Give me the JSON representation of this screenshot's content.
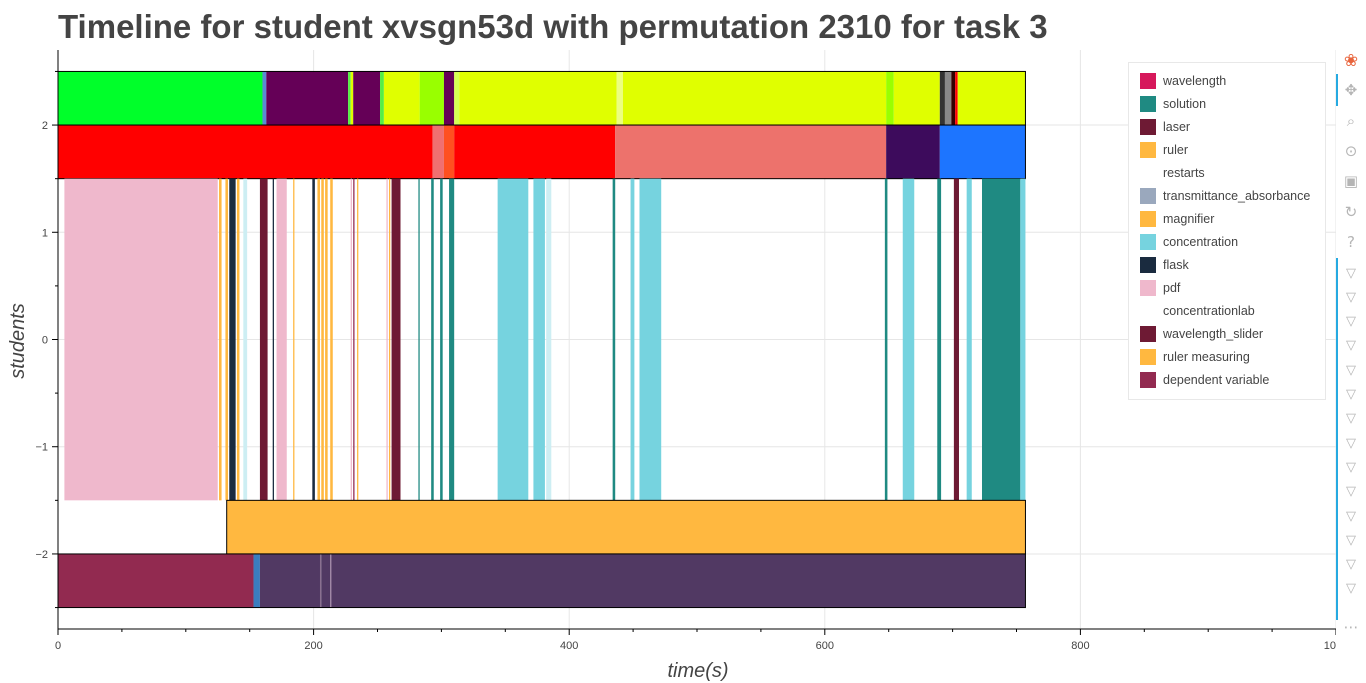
{
  "chart_data": {
    "type": "timeline",
    "title": "Timeline for student xvsgn53d with permutation 2310 for task 3",
    "xlabel": "time(s)",
    "ylabel": "students",
    "xlim": [
      0,
      1000
    ],
    "ylim": [
      -2.7,
      2.7
    ],
    "x_ticks": [
      "0",
      "200",
      "400",
      "600",
      "800",
      "1000"
    ],
    "y_ticks": [
      "2",
      "1",
      "0",
      "−1",
      "−2"
    ],
    "y_tick_values": [
      2,
      1,
      0,
      -1,
      -2
    ],
    "x_tick_values": [
      0,
      200,
      400,
      600,
      800,
      1000
    ],
    "grid": true,
    "legend_position": "top-right",
    "legend": [
      {
        "name": "wavelength",
        "color": "#d6185b"
      },
      {
        "name": "solution",
        "color": "#1f8a82"
      },
      {
        "name": "laser",
        "color": "#6e1a34"
      },
      {
        "name": "ruler",
        "color": "#ffb840"
      },
      {
        "name": "restarts",
        "color": "#ffffff"
      },
      {
        "name": "transmittance_absorbance",
        "color": "#9aa8bd"
      },
      {
        "name": "magnifier",
        "color": "#ffb840"
      },
      {
        "name": "concentration",
        "color": "#76d3df"
      },
      {
        "name": "flask",
        "color": "#1a2b3f"
      },
      {
        "name": "pdf",
        "color": "#efb8cc"
      },
      {
        "name": "concentrationlab",
        "color": "#ffffff"
      },
      {
        "name": "wavelength_slider",
        "color": "#6e1a34"
      },
      {
        "name": "ruler measuring",
        "color": "#ffb840"
      },
      {
        "name": "dependent variable",
        "color": "#922a50"
      }
    ],
    "rows": [
      {
        "y0": 2.0,
        "y1": 2.5,
        "segments": [
          {
            "x0": 0,
            "x1": 160,
            "color": "#00ff2a"
          },
          {
            "x0": 160,
            "x1": 163,
            "color": "#5b8bd4"
          },
          {
            "x0": 163,
            "x1": 227,
            "color": "#650057"
          },
          {
            "x0": 227,
            "x1": 229,
            "color": "#55ee44"
          },
          {
            "x0": 229,
            "x1": 231,
            "color": "#e0ff00"
          },
          {
            "x0": 231,
            "x1": 252,
            "color": "#650057"
          },
          {
            "x0": 252,
            "x1": 255,
            "color": "#55ee44"
          },
          {
            "x0": 255,
            "x1": 283,
            "color": "#e0ff00"
          },
          {
            "x0": 283,
            "x1": 302,
            "color": "#99ff00"
          },
          {
            "x0": 302,
            "x1": 310,
            "color": "#650057"
          },
          {
            "x0": 310,
            "x1": 314,
            "color": "#d7ff55"
          },
          {
            "x0": 314,
            "x1": 437,
            "color": "#e0ff00"
          },
          {
            "x0": 437,
            "x1": 442,
            "color": "#ecff80"
          },
          {
            "x0": 442,
            "x1": 648,
            "color": "#e0ff00"
          },
          {
            "x0": 648,
            "x1": 654,
            "color": "#99ff00"
          },
          {
            "x0": 654,
            "x1": 690,
            "color": "#e0ff00"
          },
          {
            "x0": 690,
            "x1": 694,
            "color": "#333333"
          },
          {
            "x0": 694,
            "x1": 699,
            "color": "#888888"
          },
          {
            "x0": 699,
            "x1": 702,
            "color": "#330000"
          },
          {
            "x0": 702,
            "x1": 704,
            "color": "#ff0000"
          },
          {
            "x0": 704,
            "x1": 757,
            "color": "#e0ff00"
          }
        ]
      },
      {
        "y0": 1.5,
        "y1": 2.0,
        "segments": [
          {
            "x0": 0,
            "x1": 293,
            "color": "#ff0000"
          },
          {
            "x0": 293,
            "x1": 302,
            "color": "#f07070"
          },
          {
            "x0": 302,
            "x1": 310,
            "color": "#ff5020"
          },
          {
            "x0": 310,
            "x1": 436,
            "color": "#ff0000"
          },
          {
            "x0": 436,
            "x1": 648,
            "color": "#ed726c"
          },
          {
            "x0": 648,
            "x1": 690,
            "color": "#3d0b5c"
          },
          {
            "x0": 690,
            "x1": 757,
            "color": "#1d75ff"
          }
        ]
      },
      {
        "y0": -1.5,
        "y1": 1.5,
        "segments": [
          {
            "x0": 5,
            "x1": 125,
            "color": "#efb8cc"
          },
          {
            "x0": 126,
            "x1": 128,
            "color": "#ffb840"
          },
          {
            "x0": 131,
            "x1": 133,
            "color": "#ffb840"
          },
          {
            "x0": 134,
            "x1": 139,
            "color": "#1a2b3f"
          },
          {
            "x0": 140,
            "x1": 142,
            "color": "#ffb840"
          },
          {
            "x0": 145,
            "x1": 148,
            "color": "#cdeef3"
          },
          {
            "x0": 158,
            "x1": 164,
            "color": "#6e1a34"
          },
          {
            "x0": 168,
            "x1": 169,
            "color": "#1a2b3f"
          },
          {
            "x0": 171,
            "x1": 179,
            "color": "#efb8cc"
          },
          {
            "x0": 184,
            "x1": 185,
            "color": "#ffb840"
          },
          {
            "x0": 199,
            "x1": 201,
            "color": "#1a2b3f"
          },
          {
            "x0": 203,
            "x1": 205,
            "color": "#ffb840"
          },
          {
            "x0": 206,
            "x1": 208,
            "color": "#ffb840"
          },
          {
            "x0": 209,
            "x1": 211,
            "color": "#ffb840"
          },
          {
            "x0": 213,
            "x1": 215,
            "color": "#ffb840"
          },
          {
            "x0": 229,
            "x1": 230,
            "color": "#efb8cc"
          },
          {
            "x0": 231,
            "x1": 232,
            "color": "#922a50"
          },
          {
            "x0": 234,
            "x1": 235,
            "color": "#ffb840"
          },
          {
            "x0": 257,
            "x1": 258,
            "color": "#efb8cc"
          },
          {
            "x0": 259,
            "x1": 260,
            "color": "#ffb840"
          },
          {
            "x0": 261,
            "x1": 268,
            "color": "#6e1a34"
          },
          {
            "x0": 282,
            "x1": 283,
            "color": "#1f8a82"
          },
          {
            "x0": 292,
            "x1": 294,
            "color": "#1f8a82"
          },
          {
            "x0": 299,
            "x1": 301,
            "color": "#1f8a82"
          },
          {
            "x0": 306,
            "x1": 310,
            "color": "#1f8a82"
          },
          {
            "x0": 344,
            "x1": 368,
            "color": "#76d3df"
          },
          {
            "x0": 372,
            "x1": 381,
            "color": "#76d3df"
          },
          {
            "x0": 382,
            "x1": 386,
            "color": "#cdeef3"
          },
          {
            "x0": 434,
            "x1": 436,
            "color": "#1f8a82"
          },
          {
            "x0": 448,
            "x1": 451,
            "color": "#76d3df"
          },
          {
            "x0": 455,
            "x1": 472,
            "color": "#76d3df"
          },
          {
            "x0": 647,
            "x1": 649,
            "color": "#1f8a82"
          },
          {
            "x0": 661,
            "x1": 670,
            "color": "#76d3df"
          },
          {
            "x0": 688,
            "x1": 691,
            "color": "#1f8a82"
          },
          {
            "x0": 701,
            "x1": 705,
            "color": "#6e1a34"
          },
          {
            "x0": 711,
            "x1": 715,
            "color": "#76d3df"
          },
          {
            "x0": 723,
            "x1": 753,
            "color": "#1f8a82"
          },
          {
            "x0": 753,
            "x1": 757,
            "color": "#76d3df"
          }
        ]
      },
      {
        "y0": -2.0,
        "y1": -1.5,
        "segments": [
          {
            "x0": 132,
            "x1": 757,
            "color": "#ffb840"
          }
        ]
      },
      {
        "y0": -2.5,
        "y1": -2.0,
        "segments": [
          {
            "x0": 0,
            "x1": 153,
            "color": "#922a50"
          },
          {
            "x0": 153,
            "x1": 158,
            "color": "#3a7dbf"
          },
          {
            "x0": 158,
            "x1": 205,
            "color": "#513963"
          },
          {
            "x0": 205,
            "x1": 206,
            "color": "#8a7090"
          },
          {
            "x0": 206,
            "x1": 213,
            "color": "#513963"
          },
          {
            "x0": 213,
            "x1": 214,
            "color": "#9a7fa0"
          },
          {
            "x0": 214,
            "x1": 757,
            "color": "#513963"
          }
        ]
      }
    ]
  },
  "toolbar": {
    "tools": [
      {
        "name": "bokeh-logo-icon",
        "glyph": "❀",
        "interactable": false
      },
      {
        "name": "pan-icon",
        "glyph": "✥",
        "interactable": true
      },
      {
        "name": "box-zoom-icon",
        "glyph": "⌕",
        "interactable": true
      },
      {
        "name": "wheel-zoom-icon",
        "glyph": "⊙",
        "interactable": true
      },
      {
        "name": "save-icon",
        "glyph": "▣",
        "interactable": true
      },
      {
        "name": "reset-icon",
        "glyph": "↻",
        "interactable": true
      },
      {
        "name": "help-icon",
        "glyph": "?",
        "interactable": true
      }
    ],
    "hover_tool_count": 14,
    "hover_glyph": "▽",
    "overflow_glyph": "⋯"
  }
}
